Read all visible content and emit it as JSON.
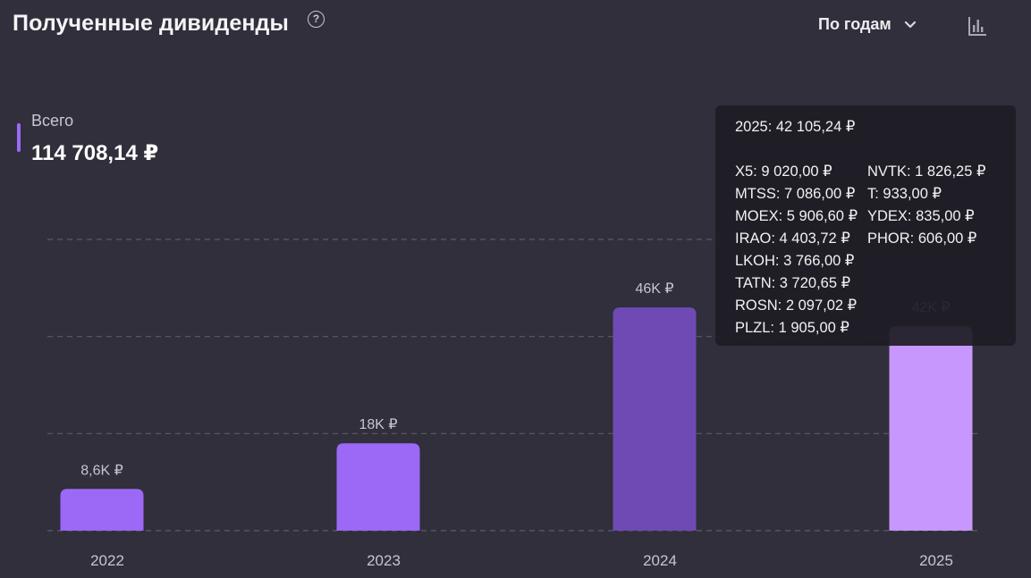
{
  "header": {
    "title": "Полученные дивиденды",
    "help_icon": "question-circle-icon",
    "period_label": "По годам",
    "period_icon": "chevron-down-icon",
    "chart_type_icon": "bar-chart-icon"
  },
  "total": {
    "label": "Всего",
    "value": "114 708,14 ₽",
    "accent_color": "#9a6cf7"
  },
  "chart_data": {
    "type": "bar",
    "title": "",
    "xlabel": "",
    "ylabel": "",
    "categories": [
      "2022",
      "2023",
      "2024",
      "2025"
    ],
    "values": [
      8600,
      18000,
      46000,
      42105.24
    ],
    "value_labels": [
      "8,6K ₽",
      "18K ₽",
      "46K ₽",
      "42K ₽"
    ],
    "ylim": [
      0,
      60000
    ],
    "grid": true,
    "bar_colors": [
      "#9b69f6",
      "#9b69f6",
      "#6f4ab5",
      "#c797fd"
    ],
    "highlighted_category": "2025"
  },
  "tooltip": {
    "title": "2025: 42 105,24 ₽",
    "col1": [
      "X5: 9 020,00 ₽",
      "MTSS: 7 086,00 ₽",
      "MOEX: 5 906,60 ₽",
      "IRAO: 4 403,72 ₽",
      "LKOH: 3 766,00 ₽",
      "TATN: 3 720,65 ₽",
      "ROSN: 2 097,02 ₽",
      "PLZL: 1 905,00 ₽"
    ],
    "col2": [
      "NVTK: 1 826,25 ₽",
      "T: 933,00 ₽",
      "YDEX: 835,00 ₽",
      "PHOR: 606,00 ₽"
    ]
  }
}
